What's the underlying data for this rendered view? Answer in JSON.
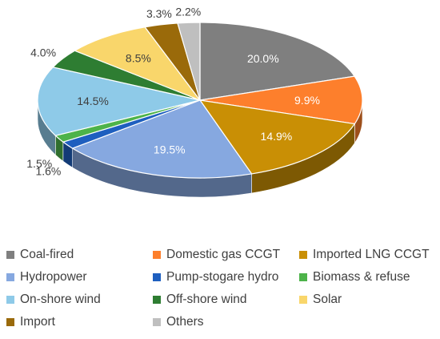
{
  "chart_data": {
    "type": "pie",
    "style": "3d",
    "title": "",
    "slices": [
      {
        "name": "Coal-fired",
        "value": 20.0,
        "label": "20.0%",
        "color": "#7f7f7f"
      },
      {
        "name": "Domestic gas CCGT",
        "value": 9.9,
        "label": "9.9%",
        "color": "#fd7f2c"
      },
      {
        "name": "Imported LNG CCGT",
        "value": 14.9,
        "label": "14.9%",
        "color": "#c98f05"
      },
      {
        "name": "Hydropower",
        "value": 19.5,
        "label": "19.5%",
        "color": "#86a8e0"
      },
      {
        "name": "Pump-stogare hydro",
        "value": 1.6,
        "label": "1.6%",
        "color": "#1e5fbf"
      },
      {
        "name": "Biomass & refuse",
        "value": 1.5,
        "label": "1.5%",
        "color": "#4db34a"
      },
      {
        "name": "On-shore wind",
        "value": 14.5,
        "label": "14.5%",
        "color": "#8ecae8"
      },
      {
        "name": "Off-shore wind",
        "value": 4.0,
        "label": "4.0%",
        "color": "#2e7d32"
      },
      {
        "name": "Solar",
        "value": 8.5,
        "label": "8.5%",
        "color": "#f9d66b"
      },
      {
        "name": "Import",
        "value": 3.3,
        "label": "3.3%",
        "color": "#9a6a0a"
      },
      {
        "name": "Others",
        "value": 2.2,
        "label": "2.2%",
        "color": "#bfbfbf"
      }
    ],
    "legend_position": "bottom"
  }
}
